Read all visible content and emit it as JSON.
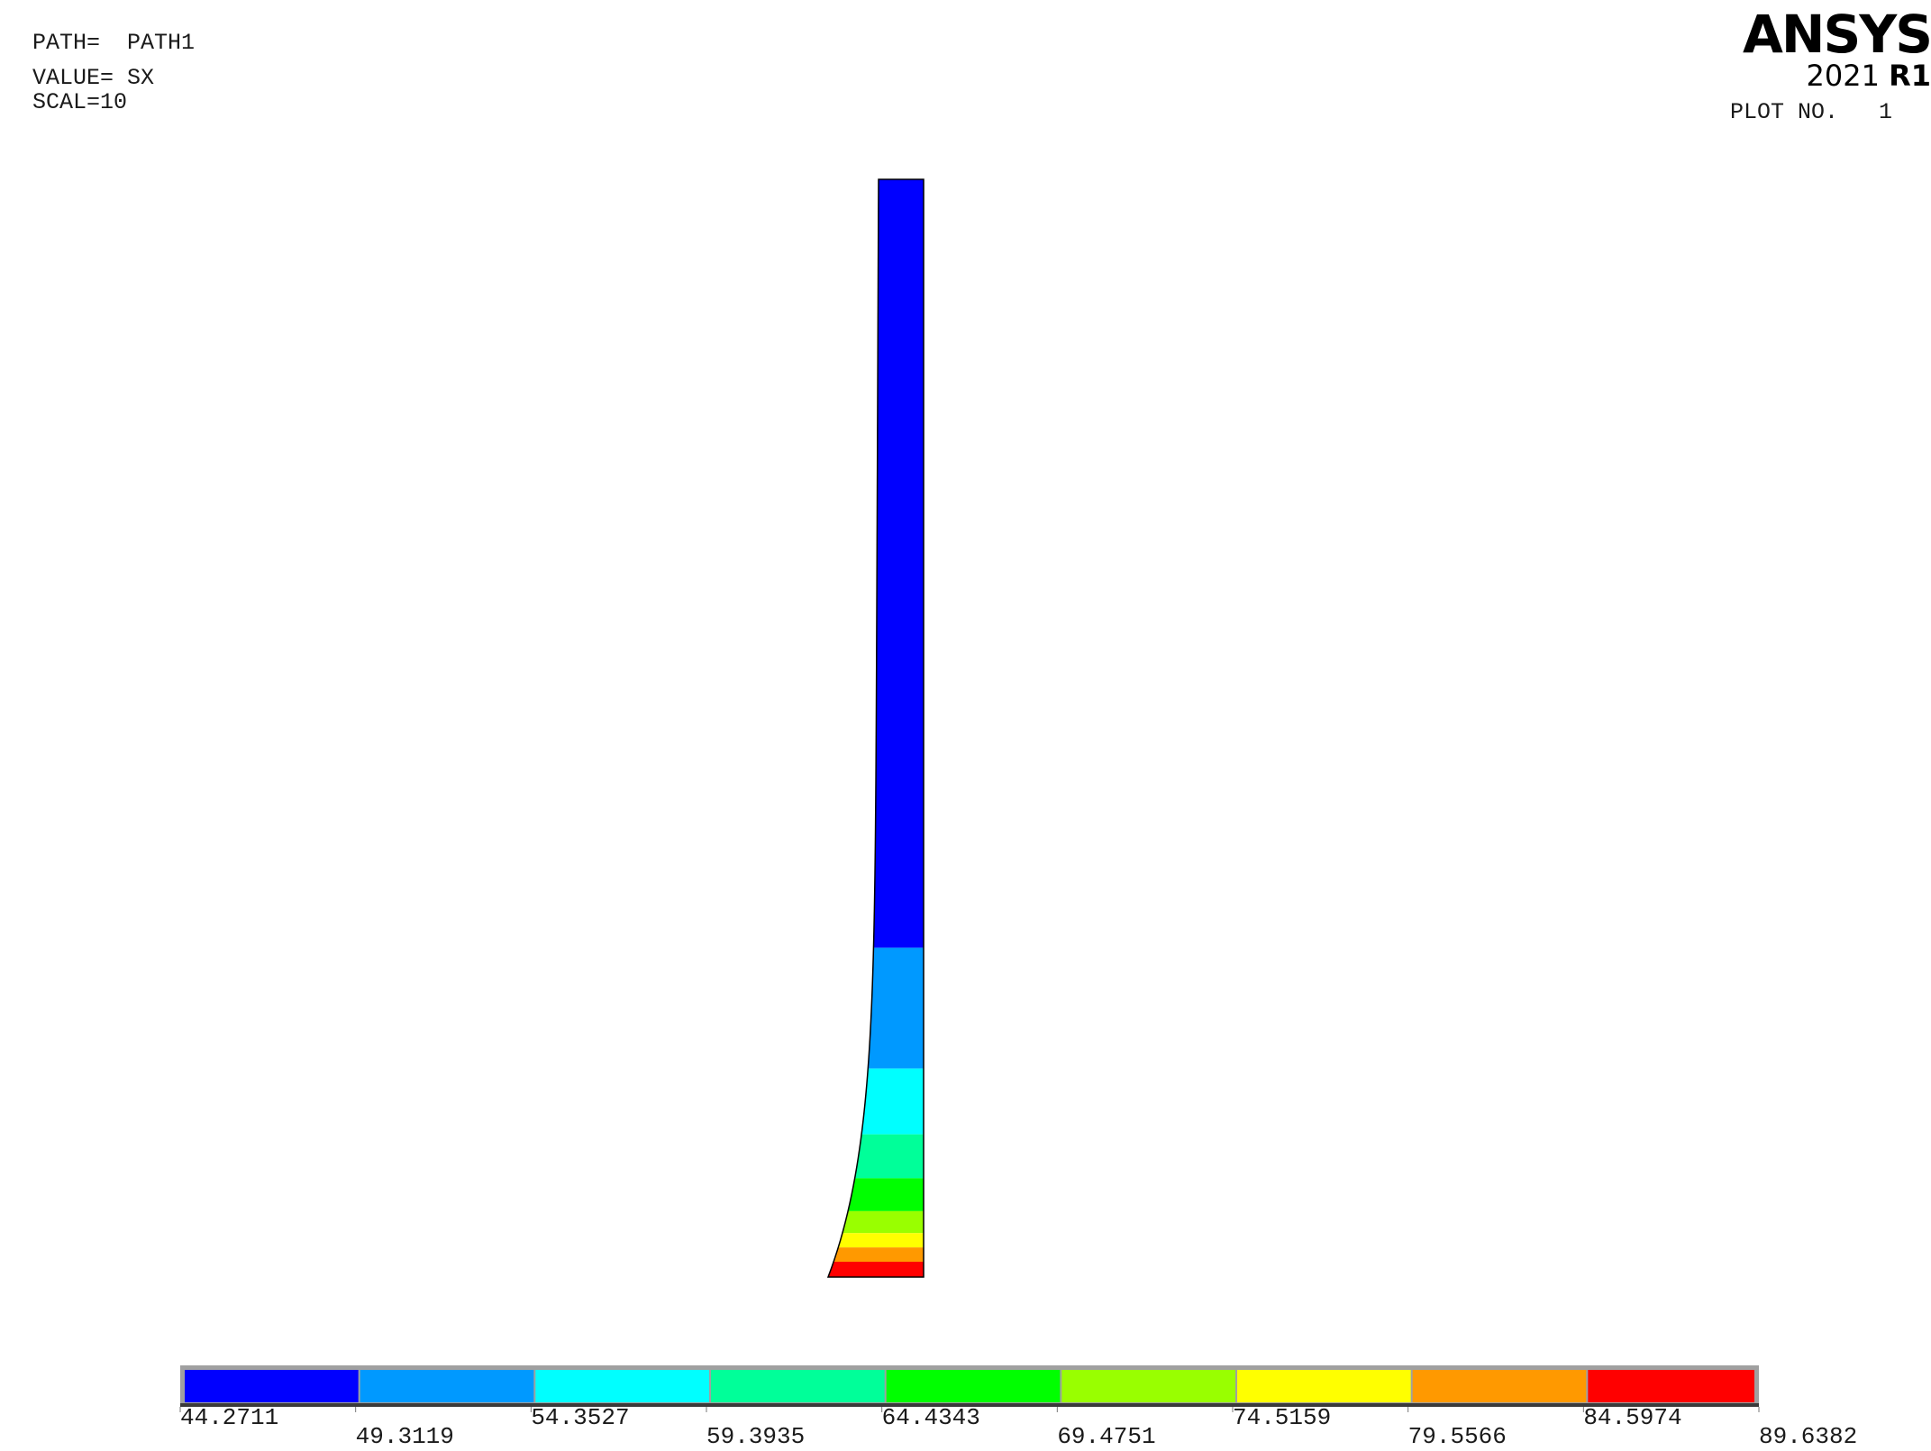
{
  "header": {
    "path_label": "PATH=",
    "path_value": "PATH1",
    "value_label": "VALUE=",
    "value_value": "SX",
    "scal": "SCAL=10"
  },
  "logo": {
    "name": "ANSYS",
    "year": "2021",
    "release": "R1"
  },
  "plot_no": {
    "label": "PLOT NO.",
    "value": "1"
  },
  "legend": {
    "levels": [
      "44.2711",
      "49.3119",
      "54.3527",
      "59.3935",
      "64.4343",
      "69.4751",
      "74.5159",
      "79.5566",
      "84.5974",
      "89.6382"
    ],
    "colors": [
      "#0000ff",
      "#0099ff",
      "#00ffff",
      "#00ff99",
      "#00ff00",
      "#99ff00",
      "#ffff00",
      "#ff9900",
      "#ff0000"
    ]
  },
  "path_plot": {
    "segments": [
      {
        "from": 0.0,
        "to": 0.7,
        "color": "#0000ff"
      },
      {
        "from": 0.7,
        "to": 0.81,
        "color": "#0099ff"
      },
      {
        "from": 0.81,
        "to": 0.87,
        "color": "#00ffff"
      },
      {
        "from": 0.87,
        "to": 0.91,
        "color": "#00ff99"
      },
      {
        "from": 0.91,
        "to": 0.94,
        "color": "#00ff00"
      },
      {
        "from": 0.94,
        "to": 0.96,
        "color": "#99ff00"
      },
      {
        "from": 0.96,
        "to": 0.973,
        "color": "#ffff00"
      },
      {
        "from": 0.973,
        "to": 0.986,
        "color": "#ff9900"
      },
      {
        "from": 0.986,
        "to": 1.0,
        "color": "#ff0000"
      }
    ]
  }
}
